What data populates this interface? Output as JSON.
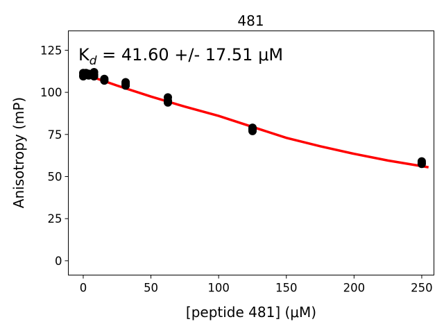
{
  "chart_data": {
    "type": "scatter",
    "title": "481",
    "xlabel": "[peptide 481] (μM)",
    "ylabel": "Anisotropy (mP)",
    "xlim": [
      -11,
      259
    ],
    "ylim": [
      -8.5,
      136.5
    ],
    "xticks": [
      0,
      50,
      100,
      150,
      200,
      250
    ],
    "yticks": [
      0,
      25,
      50,
      75,
      100,
      125
    ],
    "grid": false,
    "annotation": {
      "kd_symbol": "K",
      "kd_subscript": "d",
      "kd_rest": " = 41.60 +/- 17.51 μM"
    },
    "points": {
      "color": "#000000",
      "x": [
        0,
        0,
        0,
        2,
        2,
        4,
        4,
        8,
        8,
        8,
        15.6,
        15.6,
        31.3,
        31.3,
        31.3,
        62.5,
        62.5,
        62.5,
        125,
        125,
        125,
        250,
        250,
        250
      ],
      "y": [
        110,
        111.5,
        109.5,
        110.5,
        111.5,
        110,
        111,
        110.5,
        112,
        109.5,
        108,
        107,
        106,
        105,
        104,
        97,
        95,
        94,
        79,
        78,
        77,
        59,
        58,
        57.5
      ]
    },
    "fit_line": {
      "color": "#ff0000",
      "x": [
        0,
        25,
        50,
        75,
        100,
        125,
        150,
        175,
        200,
        225,
        255
      ],
      "y": [
        111,
        104,
        97.5,
        91.5,
        86,
        79.5,
        73,
        68,
        63.5,
        59.5,
        55.5
      ]
    }
  }
}
